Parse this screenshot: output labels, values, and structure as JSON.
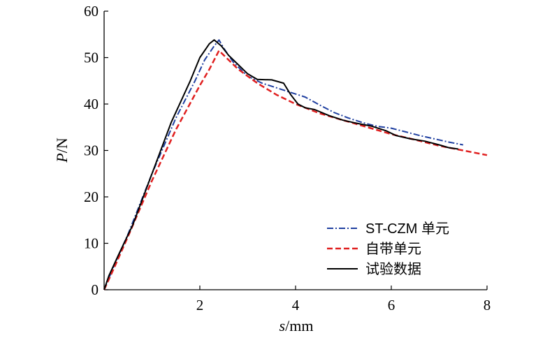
{
  "chart_data": {
    "type": "line",
    "title": "",
    "xlabel": {
      "italic": "s",
      "rest": "/mm"
    },
    "ylabel": {
      "italic": "P",
      "rest": "/N"
    },
    "xlim": [
      0,
      8
    ],
    "ylim": [
      0,
      60
    ],
    "xticks": [
      2,
      4,
      6,
      8
    ],
    "yticks": [
      0,
      10,
      20,
      30,
      40,
      50,
      60
    ],
    "grid": false,
    "legend_position": "bottom-right",
    "series": [
      {
        "name": "ST-CZM 单元",
        "color": "#1f3fa0",
        "dash": "dashdot",
        "x": [
          0,
          0.2,
          0.5,
          1.0,
          1.5,
          1.9,
          2.1,
          2.3,
          2.4,
          2.5,
          2.7,
          3.0,
          3.3,
          3.6,
          3.9,
          4.2,
          4.5,
          4.8,
          5.1,
          5.4,
          5.7,
          6.0,
          6.3,
          6.6,
          6.9,
          7.2,
          7.5
        ],
        "y": [
          0,
          5,
          12,
          25,
          37,
          45,
          49.5,
          52.5,
          53.8,
          52,
          49,
          46,
          44.5,
          43.5,
          42.5,
          41.5,
          39.8,
          38.2,
          37,
          36,
          35.2,
          34.8,
          34,
          33.2,
          32.5,
          31.8,
          31.2
        ]
      },
      {
        "name": "自带单元",
        "color": "#e02020",
        "dash": "dashed",
        "x": [
          0,
          0.2,
          0.5,
          1.0,
          1.5,
          2.0,
          2.2,
          2.4,
          2.5,
          2.8,
          3.2,
          3.6,
          4.0,
          4.5,
          5.0,
          5.5,
          6.0,
          6.5,
          7.0,
          7.5,
          8.0
        ],
        "y": [
          0,
          4.5,
          11.5,
          23.5,
          34.5,
          44,
          47.5,
          51.5,
          50.5,
          47.5,
          44.5,
          42,
          40,
          38,
          36.5,
          35,
          33.5,
          32.3,
          31,
          30,
          29
        ]
      },
      {
        "name": "试验数据",
        "color": "#000000",
        "dash": "solid",
        "x": [
          0,
          0.1,
          0.3,
          0.6,
          1.0,
          1.4,
          1.8,
          2.0,
          2.2,
          2.3,
          2.45,
          2.6,
          2.8,
          3.0,
          3.2,
          3.5,
          3.75,
          3.9,
          4.05,
          4.2,
          4.4,
          4.7,
          5.0,
          5.3,
          5.6,
          5.9,
          6.1,
          6.4,
          6.7,
          7.0,
          7.2,
          7.4
        ],
        "y": [
          0,
          3,
          7.5,
          14,
          25,
          36,
          45,
          50,
          53,
          53.8,
          52.5,
          50.5,
          48.5,
          46.5,
          45.3,
          45.2,
          44.5,
          42,
          40,
          39.2,
          38.8,
          37.5,
          36.5,
          35.8,
          35.2,
          34.2,
          33.2,
          32.5,
          32,
          31.2,
          30.6,
          30.3
        ]
      }
    ]
  }
}
